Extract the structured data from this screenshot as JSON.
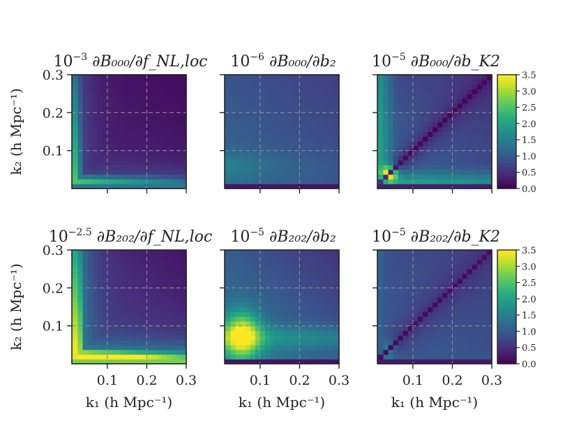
{
  "chart_data": {
    "type": "heatmap",
    "colormap": "viridis",
    "x_label": "k₁ (h Mpc⁻¹)",
    "y_label": "k₂ (h Mpc⁻¹)",
    "xlim": [
      0.01,
      0.3
    ],
    "ylim": [
      0.0,
      0.3
    ],
    "x_ticks": [
      "0.1",
      "0.2",
      "0.3"
    ],
    "y_ticks": [
      "0.1",
      "0.2",
      "0.3"
    ],
    "grid": "dashed at 0.1 and 0.2",
    "colorbar": {
      "min": 0.0,
      "max": 3.5,
      "ticks": [
        "0.0",
        "0.5",
        "1.0",
        "1.5",
        "2.0",
        "2.5",
        "3.0",
        "3.5"
      ]
    },
    "panels": [
      {
        "id": "a",
        "row": 0,
        "col": 0,
        "title_prefix": "10",
        "title_exp": "−3",
        "title_rest": "∂B₀₀₀/∂f_NL,loc",
        "pattern": "fnl",
        "amp": 1.0
      },
      {
        "id": "b",
        "row": 0,
        "col": 1,
        "title_prefix": "10",
        "title_exp": "−6",
        "title_rest": "∂B₀₀₀/∂b₂",
        "pattern": "b2",
        "amp": 1.0
      },
      {
        "id": "c",
        "row": 0,
        "col": 2,
        "title_prefix": "10",
        "title_exp": "−5",
        "title_rest": "∂B₀₀₀/∂b_K2",
        "pattern": "bk2",
        "amp": 1.0
      },
      {
        "id": "d",
        "row": 1,
        "col": 0,
        "title_prefix": "10",
        "title_exp": "−2.5",
        "title_rest": "∂B₂₀₂/∂f_NL,loc",
        "pattern": "fnl",
        "amp": 2.0
      },
      {
        "id": "e",
        "row": 1,
        "col": 1,
        "title_prefix": "10",
        "title_exp": "−5",
        "title_rest": "∂B₂₀₂/∂b₂",
        "pattern": "b2",
        "amp": 2.0
      },
      {
        "id": "f",
        "row": 1,
        "col": 2,
        "title_prefix": "10",
        "title_exp": "−5",
        "title_rest": "∂B₂₀₂/∂b_K2",
        "pattern": "bk2w",
        "amp": 1.0
      }
    ]
  }
}
